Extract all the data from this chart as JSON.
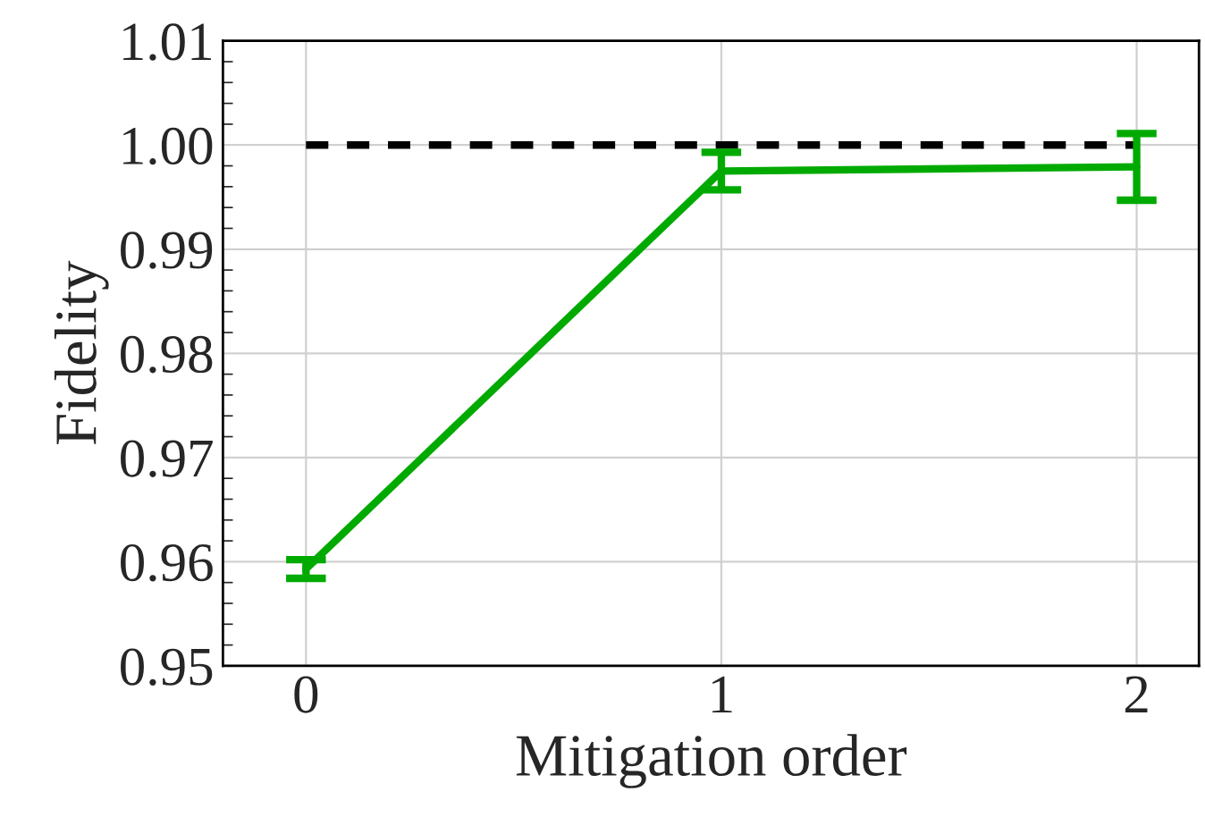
{
  "chart_data": {
    "type": "line",
    "xlabel": "Mitigation order",
    "ylabel": "Fidelity",
    "x": [
      0,
      1,
      2
    ],
    "series": [
      {
        "color": "#00aa00",
        "values": [
          0.9593,
          0.9975,
          0.9979
        ],
        "errors": [
          0.0009,
          0.0018,
          0.0032
        ],
        "line_style": "solid"
      },
      {
        "color": "#000000",
        "values": [
          1.0,
          1.0,
          1.0
        ],
        "line_style": "dashed"
      }
    ],
    "xlim": [
      -0.2,
      2.15
    ],
    "xticks": [
      0,
      1,
      2
    ],
    "ylim": [
      0.95,
      1.01
    ],
    "yticks": [
      0.95,
      0.96,
      0.97,
      0.98,
      0.99,
      "1.00",
      1.01
    ],
    "grid": true,
    "marker": "none"
  }
}
